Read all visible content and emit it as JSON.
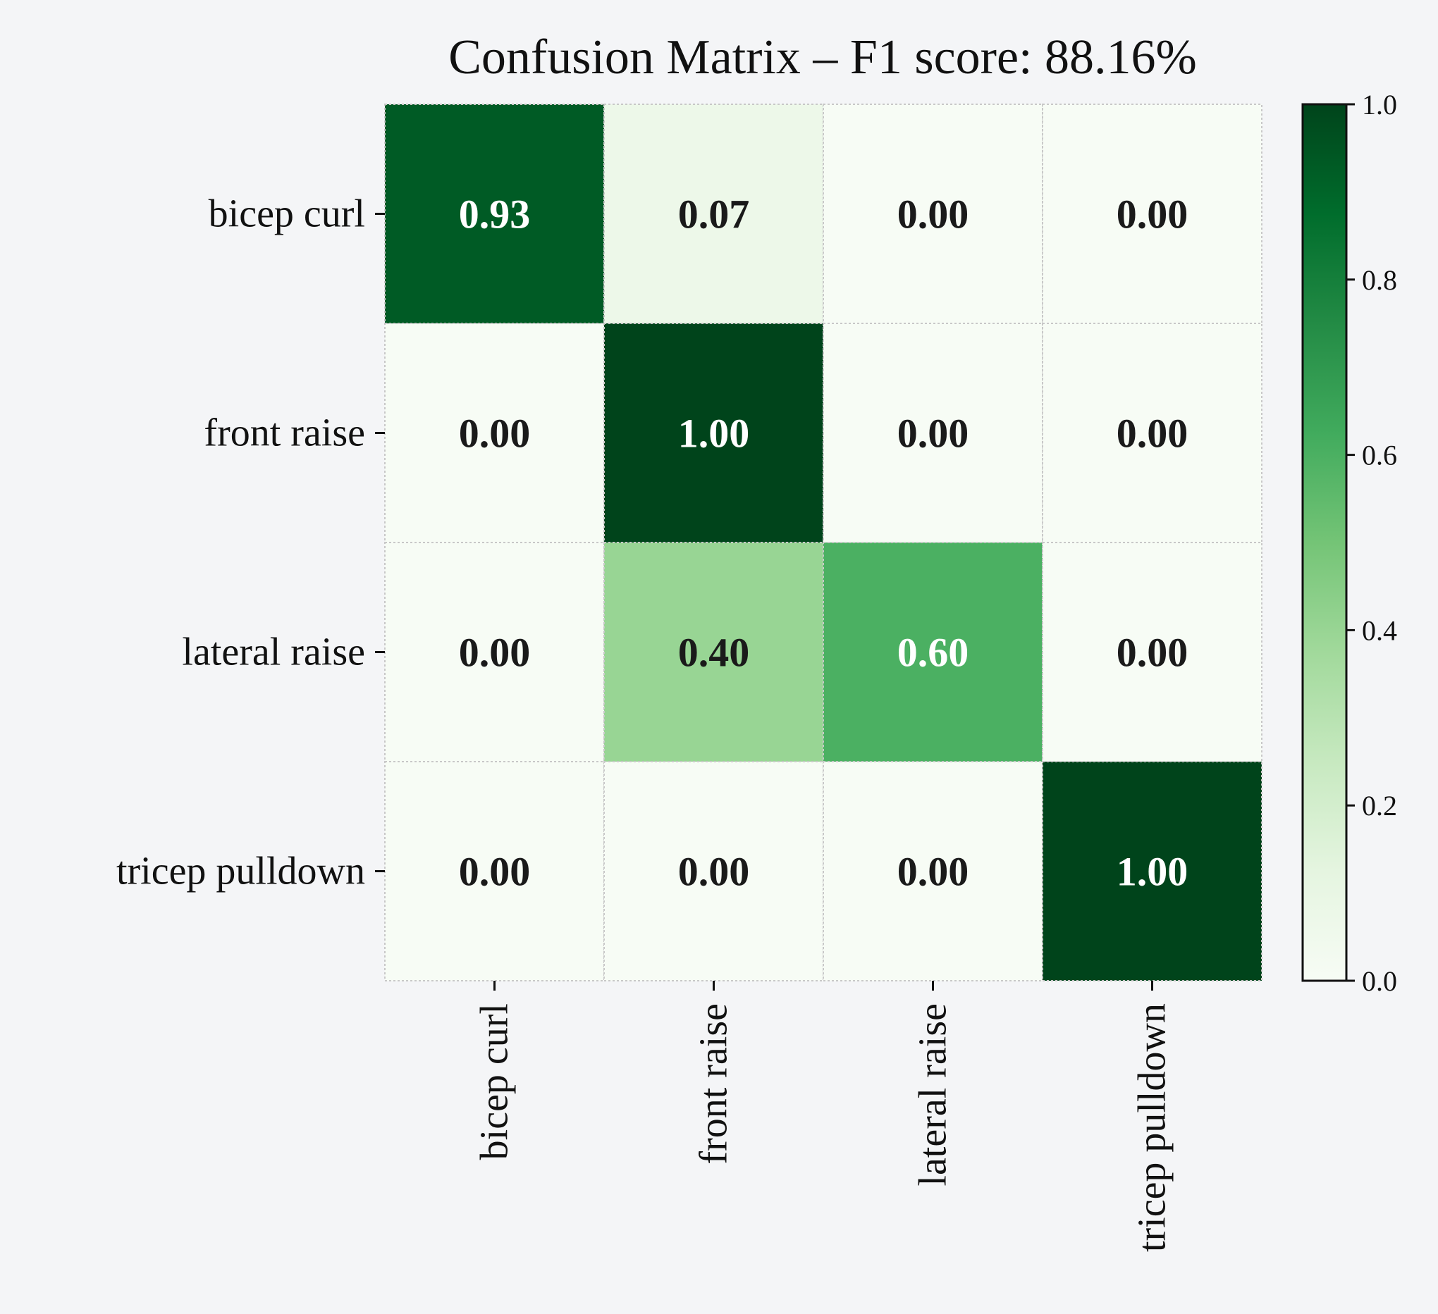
{
  "chart_data": {
    "type": "heatmap",
    "title": "Confusion Matrix – F1 score: 88.16%",
    "xlabel": "",
    "ylabel": "",
    "row_labels": [
      "bicep curl",
      "front raise",
      "lateral raise",
      "tricep pulldown"
    ],
    "col_labels": [
      "bicep curl",
      "front raise",
      "lateral raise",
      "tricep pulldown"
    ],
    "matrix": [
      [
        0.93,
        0.07,
        0.0,
        0.0
      ],
      [
        0.0,
        1.0,
        0.0,
        0.0
      ],
      [
        0.0,
        0.4,
        0.6,
        0.0
      ],
      [
        0.0,
        0.0,
        0.0,
        1.0
      ]
    ],
    "cell_labels": [
      [
        "0.93",
        "0.07",
        "0.00",
        "0.00"
      ],
      [
        "0.00",
        "1.00",
        "0.00",
        "0.00"
      ],
      [
        "0.00",
        "0.40",
        "0.60",
        "0.00"
      ],
      [
        "0.00",
        "0.00",
        "0.00",
        "1.00"
      ]
    ],
    "colormap": "Greens",
    "colorbar": {
      "range": [
        0.0,
        1.0
      ],
      "ticks": [
        0.0,
        0.2,
        0.4,
        0.6,
        0.8,
        1.0
      ],
      "tick_labels": [
        "0.0",
        "0.2",
        "0.4",
        "0.6",
        "0.8",
        "1.0"
      ]
    },
    "grid": true,
    "colors": {
      "background": "#f4f5f7",
      "text_dark": "#1a1a1a",
      "text_light": "#ffffff",
      "grid": "#c8c8c8"
    }
  }
}
